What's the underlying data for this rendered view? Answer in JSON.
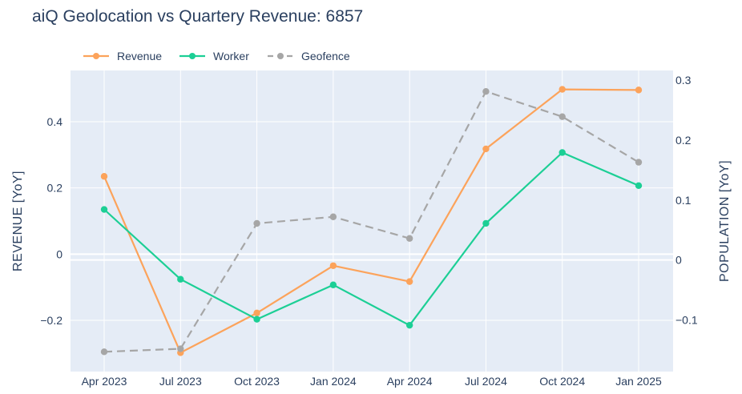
{
  "chart_data": {
    "type": "line",
    "title": "aiQ Geolocation vs Quartery Revenue: 6857",
    "categories": [
      "Apr 2023",
      "Jul 2023",
      "Oct 2023",
      "Jan 2024",
      "Apr 2024",
      "Jul 2024",
      "Oct 2024",
      "Jan 2025"
    ],
    "series": [
      {
        "name": "Revenue",
        "axis": "left",
        "color": "#fca35b",
        "dash": false,
        "values": [
          0.235,
          -0.298,
          -0.178,
          -0.035,
          -0.083,
          0.318,
          0.498,
          0.496
        ]
      },
      {
        "name": "Worker",
        "axis": "left",
        "color": "#1ccf95",
        "dash": false,
        "values": [
          0.135,
          -0.076,
          -0.197,
          -0.093,
          -0.215,
          0.093,
          0.307,
          0.207
        ]
      },
      {
        "name": "Geofence",
        "axis": "right",
        "color": "#a6a6a6",
        "dash": true,
        "values": [
          -0.153,
          -0.148,
          0.061,
          0.072,
          0.036,
          0.281,
          0.239,
          0.163
        ]
      }
    ],
    "left_axis": {
      "title": "REVENUE [YoY]",
      "range": [
        -0.355,
        0.555
      ],
      "ticks": [
        {
          "v": 0.4,
          "label": "0.4"
        },
        {
          "v": 0.2,
          "label": "0.2"
        },
        {
          "v": 0,
          "label": "0"
        },
        {
          "v": -0.2,
          "label": "−0.2"
        }
      ]
    },
    "right_axis": {
      "title": "POPULATION [YoY]",
      "range": [
        -0.186,
        0.316
      ],
      "ticks": [
        {
          "v": 0.3,
          "label": "0.3"
        },
        {
          "v": 0.2,
          "label": "0.2"
        },
        {
          "v": 0.1,
          "label": "0.1"
        },
        {
          "v": 0,
          "label": "0"
        },
        {
          "v": -0.1,
          "label": "−0.1"
        }
      ]
    },
    "legend_position": "top-left",
    "grid": true
  }
}
